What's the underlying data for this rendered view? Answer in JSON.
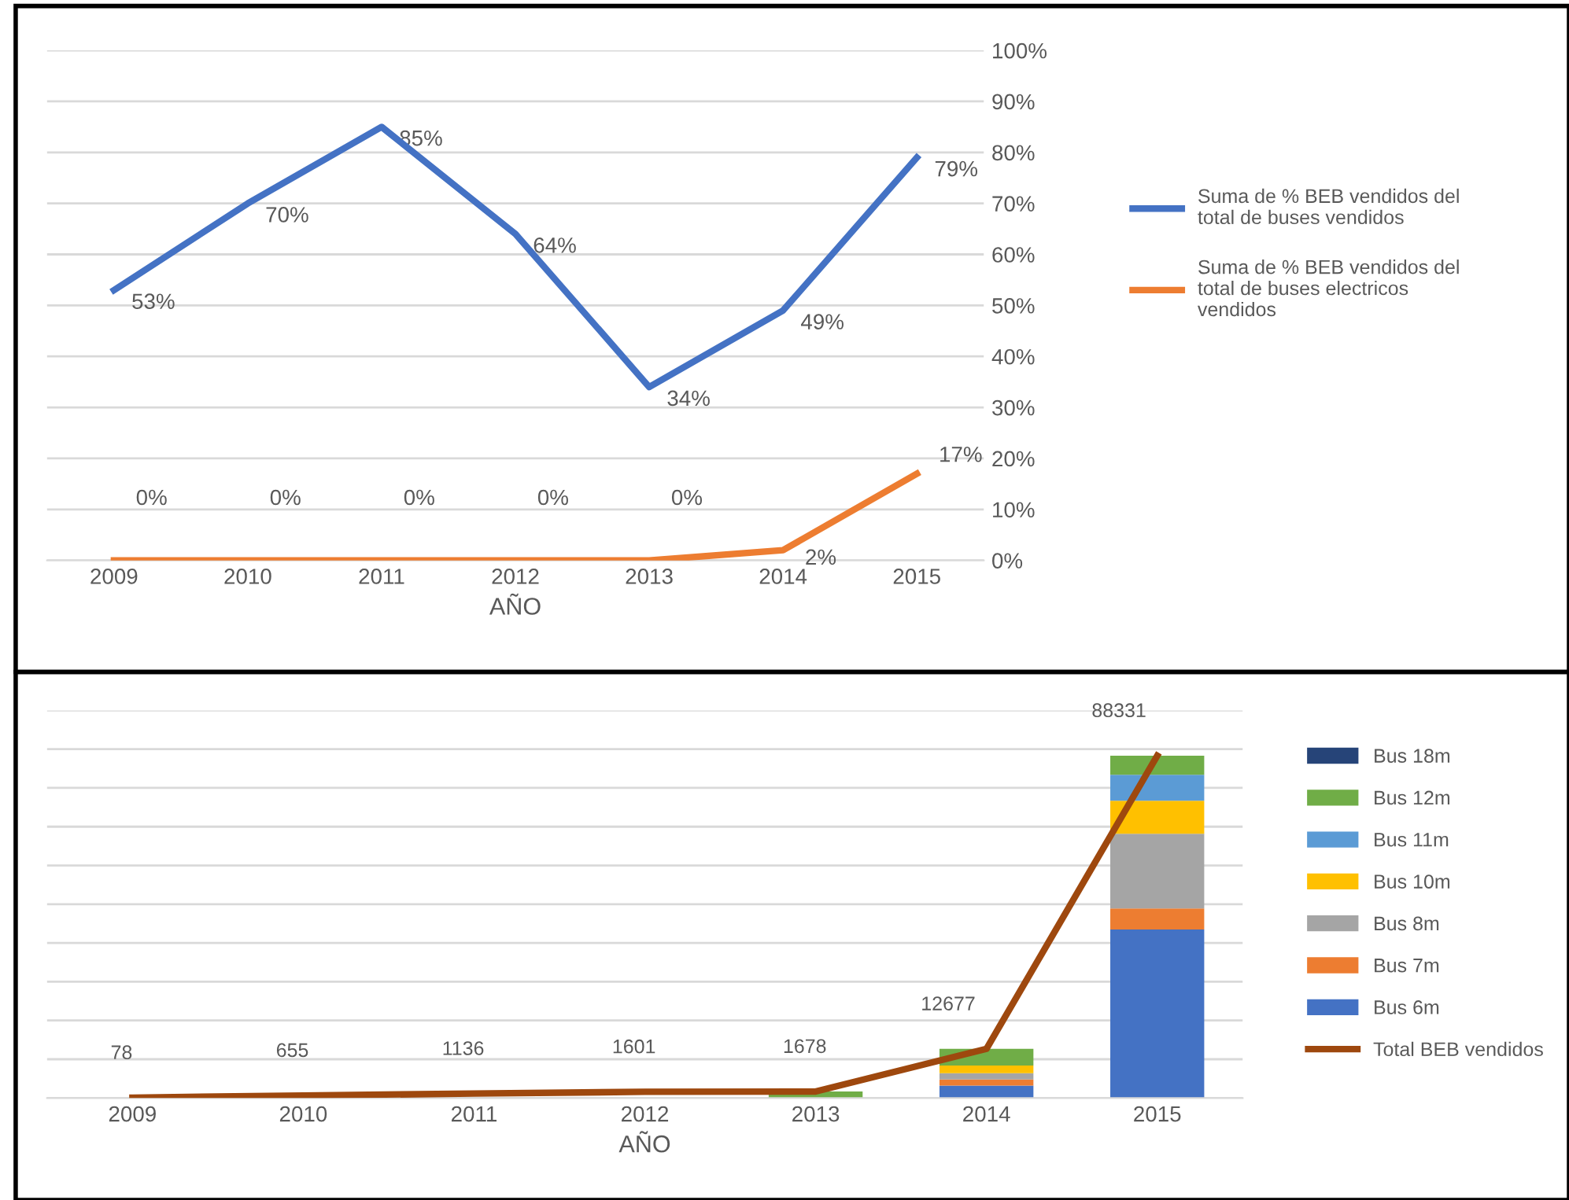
{
  "chart_data": [
    {
      "type": "line",
      "xlabel": "AÑO",
      "categories": [
        "2009",
        "2010",
        "2011",
        "2012",
        "2013",
        "2014",
        "2015"
      ],
      "series": [
        {
          "name": "Suma de % BEB vendidos del total de buses vendidos",
          "color": "#4472c4",
          "values": [
            53,
            70,
            85,
            64,
            34,
            49,
            79
          ],
          "value_labels": [
            "53%",
            "70%",
            "85%",
            "64%",
            "34%",
            "49%",
            "79%"
          ]
        },
        {
          "name": "Suma de % BEB vendidos del total de buses electricos vendidos",
          "color": "#ed7d31",
          "values": [
            0,
            0,
            0,
            0,
            0,
            2,
            17
          ],
          "value_labels": [
            "0%",
            "0%",
            "0%",
            "0%",
            "0%",
            "2%",
            "17%"
          ]
        }
      ],
      "ylim": [
        0,
        100
      ],
      "yticks": [
        {
          "value": 0,
          "label": "0%"
        },
        {
          "value": 10,
          "label": "10%"
        },
        {
          "value": 20,
          "label": "20%"
        },
        {
          "value": 30,
          "label": "30%"
        },
        {
          "value": 40,
          "label": "40%"
        },
        {
          "value": 50,
          "label": "50%"
        },
        {
          "value": 60,
          "label": "60%"
        },
        {
          "value": 70,
          "label": "70%"
        },
        {
          "value": 80,
          "label": "80%"
        },
        {
          "value": 90,
          "label": "90%"
        },
        {
          "value": 100,
          "label": "100%"
        }
      ],
      "grid": "y",
      "legend": "right",
      "marker": "none",
      "line_style": "solid"
    },
    {
      "type": "bar",
      "stacked": true,
      "xlabel": "AÑO",
      "categories": [
        "2009",
        "2010",
        "2011",
        "2012",
        "2013",
        "2014",
        "2015"
      ],
      "series": [
        {
          "name": "Bus 6m",
          "color": "#4472c4",
          "values": [
            0,
            0,
            0,
            0,
            0,
            3200,
            43500
          ]
        },
        {
          "name": "Bus 7m",
          "color": "#ed7d31",
          "values": [
            0,
            0,
            0,
            0,
            0,
            1600,
            5400
          ]
        },
        {
          "name": "Bus 8m",
          "color": "#a5a5a5",
          "values": [
            0,
            0,
            0,
            0,
            0,
            1600,
            19300
          ]
        },
        {
          "name": "Bus 10m",
          "color": "#ffc000",
          "values": [
            0,
            0,
            0,
            0,
            0,
            2000,
            8500
          ]
        },
        {
          "name": "Bus 11m",
          "color": "#5b9bd5",
          "values": [
            0,
            0,
            0,
            0,
            0,
            0,
            6700
          ]
        },
        {
          "name": "Bus 12m",
          "color": "#70ad47",
          "values": [
            0,
            0,
            0,
            null,
            1700,
            4300,
            4900
          ]
        },
        {
          "name": "Bus 18m",
          "color": "#264478",
          "values": [
            0,
            0,
            0,
            0,
            0,
            0,
            0
          ]
        },
        {
          "name": "Total BEB vendidos",
          "type": "line",
          "color": "#9e480e",
          "values": [
            78,
            655,
            1136,
            1601,
            1678,
            12677,
            88331
          ],
          "value_labels": [
            "78",
            "655",
            "1136",
            "1601",
            "1678",
            "12677",
            "88331"
          ]
        }
      ],
      "ylim": [
        0,
        100000
      ],
      "yticks": [
        {
          "value": 0,
          "label": null
        },
        {
          "value": 10000,
          "label": null
        },
        {
          "value": 20000,
          "label": null
        },
        {
          "value": 30000,
          "label": null
        },
        {
          "value": 40000,
          "label": null
        },
        {
          "value": 50000,
          "label": null
        },
        {
          "value": 60000,
          "label": null
        },
        {
          "value": 70000,
          "label": null
        },
        {
          "value": 80000,
          "label": null
        },
        {
          "value": 90000,
          "label": null
        },
        {
          "value": 100000,
          "label": null
        }
      ],
      "tick_labels": "x",
      "grid": "y",
      "legend": "right"
    }
  ]
}
